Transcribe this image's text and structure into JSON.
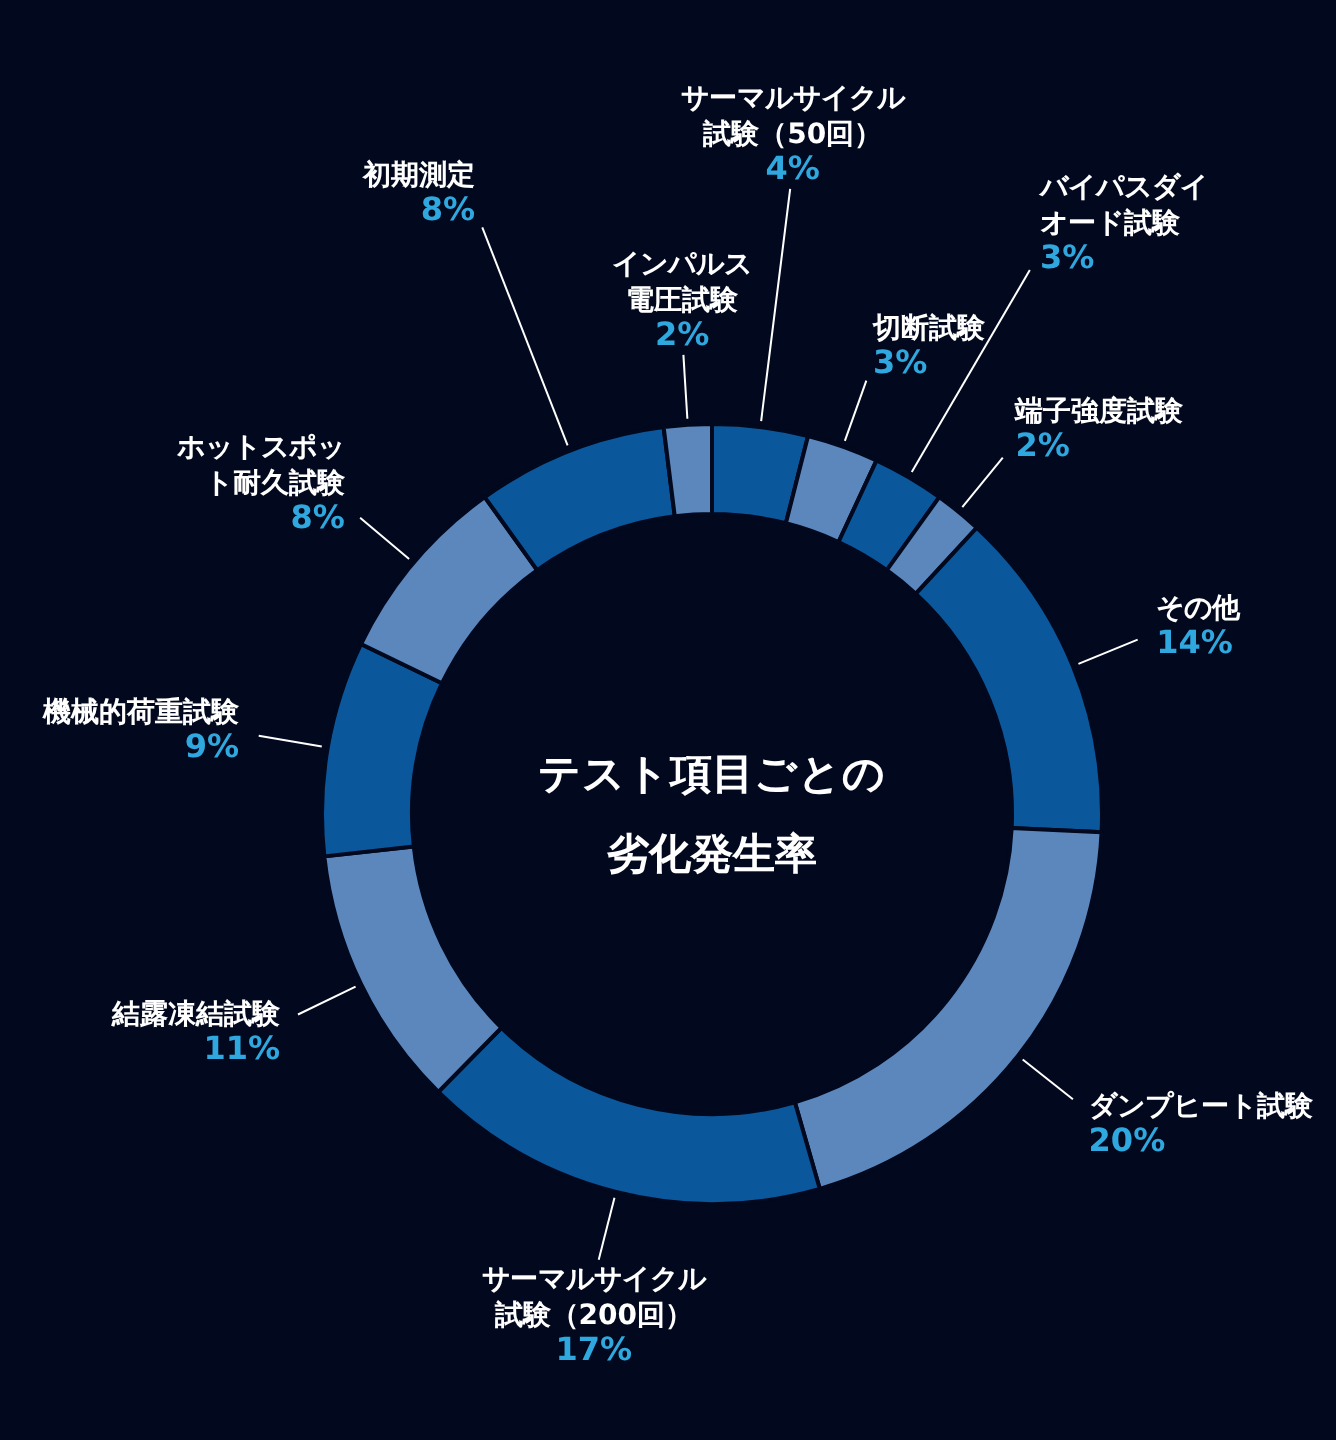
{
  "chart_data": {
    "type": "donut",
    "title": "テスト項目ごとの劣化発生率",
    "categories": [
      "サーマルサイクル試験（50回）",
      "切断試験",
      "バイパスダイオード試験",
      "端子強度試験",
      "その他",
      "ダンプヒート試験",
      "サーマルサイクル試験（200回）",
      "結露凍結試験",
      "機械的荷重試験",
      "ホットスポット耐久試験",
      "初期測定",
      "インパルス電圧試験"
    ],
    "value_labels": [
      "4%",
      "3%",
      "3%",
      "2%",
      "14%",
      "20%",
      "17%",
      "11%",
      "9%",
      "8%",
      "8%",
      "2%"
    ],
    "values": [
      4,
      3,
      3,
      2,
      14,
      20,
      17,
      11,
      9,
      8,
      8,
      2
    ],
    "colors": [
      "#0b579c",
      "#5b87bd",
      "#0b579c",
      "#5b87bd",
      "#0b579c",
      "#5b87bd",
      "#0b579c",
      "#5b87bd",
      "#0b579c",
      "#5b87bd",
      "#0b579c",
      "#5b87bd"
    ],
    "legend": false
  }
}
